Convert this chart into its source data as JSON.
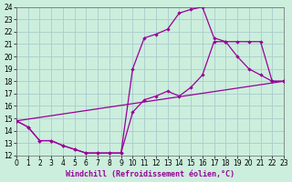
{
  "xlabel": "Windchill (Refroidissement éolien,°C)",
  "bg_color": "#cceedd",
  "line_color": "#990099",
  "grid_color": "#aacccc",
  "xlim": [
    0,
    23
  ],
  "ylim": [
    12,
    24
  ],
  "xticks": [
    0,
    1,
    2,
    3,
    4,
    5,
    6,
    7,
    8,
    9,
    10,
    11,
    12,
    13,
    14,
    15,
    16,
    17,
    18,
    19,
    20,
    21,
    22,
    23
  ],
  "yticks": [
    12,
    13,
    14,
    15,
    16,
    17,
    18,
    19,
    20,
    21,
    22,
    23,
    24
  ],
  "line1_x": [
    0,
    1,
    2,
    3,
    4,
    5,
    6,
    7,
    8,
    9,
    10,
    11,
    12,
    13,
    14,
    15,
    16,
    17,
    18,
    19,
    20,
    21,
    22,
    23
  ],
  "line1_y": [
    14.8,
    14.3,
    13.2,
    13.2,
    12.8,
    12.5,
    12.2,
    12.2,
    12.2,
    12.2,
    19.0,
    21.5,
    21.8,
    22.2,
    23.5,
    23.8,
    24.0,
    21.5,
    21.2,
    20.0,
    19.0,
    18.5,
    18.0,
    18.0
  ],
  "line2_x": [
    0,
    1,
    2,
    3,
    4,
    5,
    6,
    7,
    8,
    9,
    10,
    11,
    12,
    13,
    14,
    15,
    16,
    17,
    18,
    19,
    20,
    21,
    22,
    23
  ],
  "line2_y": [
    14.8,
    14.3,
    13.2,
    13.2,
    12.8,
    12.5,
    12.2,
    12.2,
    12.2,
    12.2,
    15.5,
    16.5,
    16.8,
    17.2,
    16.8,
    17.5,
    18.5,
    21.2,
    21.2,
    21.2,
    21.2,
    21.2,
    18.0,
    18.0
  ],
  "line3_x": [
    0,
    23
  ],
  "line3_y": [
    14.8,
    18.0
  ],
  "xlabel_color": "#990099",
  "xlabel_fontsize": 6,
  "tick_fontsize": 5.5
}
